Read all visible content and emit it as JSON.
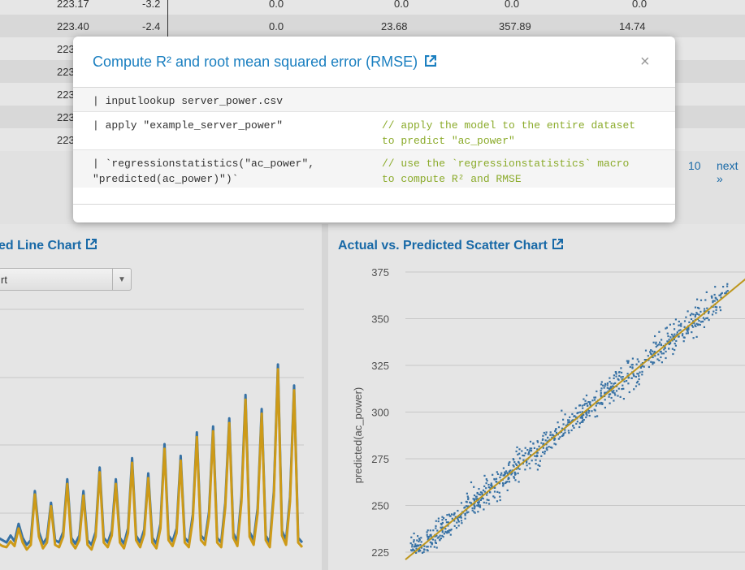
{
  "table": {
    "rows": [
      {
        "c1": "223.17",
        "c2": "-3.2",
        "c3": "0.0",
        "c4": "0.0",
        "c5": "0.0",
        "c6": "0.0"
      },
      {
        "c1": "223.40",
        "c2": "-2.4",
        "c3": "0.0",
        "c4": "23.68",
        "c5": "357.89",
        "c6": "14.74"
      },
      {
        "c1": "223"
      },
      {
        "c1": "223"
      },
      {
        "c1": "223"
      },
      {
        "c1": "223"
      },
      {
        "c1": "223"
      }
    ],
    "pager": {
      "page": "10",
      "next": "next »"
    }
  },
  "left_panel": {
    "title": "ed Line Chart",
    "select_value": "rt",
    "chart_data": {
      "type": "line",
      "series": [
        {
          "color": "#3a78ad",
          "values": [
            250,
            248,
            246,
            252,
            247,
            262,
            250,
            244,
            248,
            290,
            255,
            245,
            250,
            280,
            248,
            246,
            255,
            300,
            250,
            245,
            252,
            290,
            248,
            244,
            255,
            310,
            250,
            246,
            256,
            300,
            250,
            245,
            258,
            318,
            252,
            246,
            257,
            305,
            250,
            245,
            262,
            330,
            252,
            247,
            258,
            320,
            250,
            246,
            270,
            340,
            252,
            248,
            272,
            345,
            250,
            246,
            280,
            352,
            254,
            247,
            285,
            372,
            255,
            248,
            275,
            360,
            252,
            246,
            290,
            398,
            256,
            248,
            285,
            380,
            250,
            246
          ]
        },
        {
          "color": "#d8a31a",
          "values": [
            245,
            243,
            242,
            247,
            243,
            258,
            246,
            240,
            244,
            287,
            251,
            241,
            246,
            277,
            244,
            242,
            251,
            296,
            246,
            241,
            248,
            286,
            244,
            240,
            251,
            306,
            246,
            242,
            252,
            296,
            246,
            241,
            254,
            314,
            248,
            242,
            253,
            301,
            246,
            241,
            258,
            326,
            248,
            243,
            254,
            316,
            246,
            242,
            266,
            336,
            248,
            244,
            268,
            341,
            246,
            242,
            276,
            348,
            250,
            243,
            281,
            368,
            251,
            244,
            271,
            356,
            248,
            242,
            286,
            394,
            252,
            244,
            281,
            376,
            246,
            242
          ]
        }
      ]
    }
  },
  "right_panel": {
    "title": "Actual vs. Predicted Scatter Chart",
    "chart_data": {
      "type": "scatter",
      "ylabel": "predicted(ac_power)",
      "y_ticks": [
        "375",
        "350",
        "325",
        "300",
        "275",
        "250",
        "225"
      ],
      "ylim": [
        225,
        375
      ],
      "xlim": [
        222,
        372
      ],
      "series": [
        {
          "color": "#3a78ad"
        }
      ],
      "fit_line": {
        "color": "#c9a020"
      }
    }
  },
  "modal": {
    "title": "Compute R² and root mean squared error (RMSE)",
    "close": "×",
    "rows": [
      {
        "code": "| inputlookup server_power.csv",
        "comment": ""
      },
      {
        "code": "| apply \"example_server_power\"",
        "comment": "// apply the model to the entire dataset\nto predict \"ac_power\""
      },
      {
        "code": "| `regressionstatistics(\"ac_power\",\n\"predicted(ac_power)\")`",
        "comment": "// use the `regressionstatistics` macro\nto compute R² and RMSE"
      }
    ]
  },
  "colors": {
    "link": "#1a6fb0",
    "comment": "#8bab2b",
    "line_blue": "#3a78ad",
    "line_gold": "#d8a31a"
  }
}
